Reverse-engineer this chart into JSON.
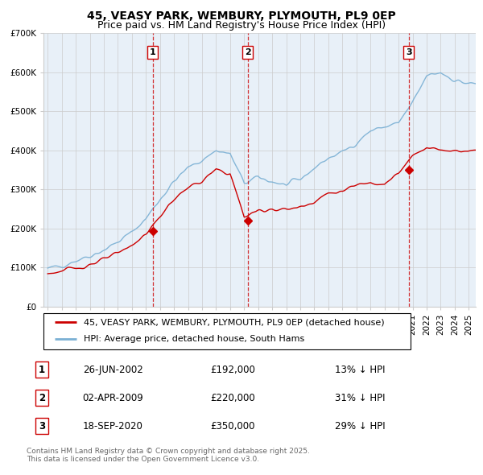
{
  "title": "45, VEASY PARK, WEMBURY, PLYMOUTH, PL9 0EP",
  "subtitle": "Price paid vs. HM Land Registry's House Price Index (HPI)",
  "ylim": [
    0,
    700000
  ],
  "yticks": [
    0,
    100000,
    200000,
    300000,
    400000,
    500000,
    600000,
    700000
  ],
  "ytick_labels": [
    "£0",
    "£100K",
    "£200K",
    "£300K",
    "£400K",
    "£500K",
    "£600K",
    "£700K"
  ],
  "xlim_start": 1994.7,
  "xlim_end": 2025.5,
  "sale_dates": [
    2002.49,
    2009.25,
    2020.72
  ],
  "sale_prices": [
    192000,
    220000,
    350000
  ],
  "sale_labels": [
    "1",
    "2",
    "3"
  ],
  "sale_date_strs": [
    "26-JUN-2002",
    "02-APR-2009",
    "18-SEP-2020"
  ],
  "sale_price_strs": [
    "£192,000",
    "£220,000",
    "£350,000"
  ],
  "sale_hpi_strs": [
    "13% ↓ HPI",
    "31% ↓ HPI",
    "29% ↓ HPI"
  ],
  "legend_property": "45, VEASY PARK, WEMBURY, PLYMOUTH, PL9 0EP (detached house)",
  "legend_hpi": "HPI: Average price, detached house, South Hams",
  "red_color": "#cc0000",
  "blue_color": "#7ab0d4",
  "bg_color_light": "#e8f0f8",
  "bg_color_dark": "#d0dff0",
  "grid_color": "#cccccc",
  "copyright_text": "Contains HM Land Registry data © Crown copyright and database right 2025.\nThis data is licensed under the Open Government Licence v3.0.",
  "title_fontsize": 10,
  "subtitle_fontsize": 9,
  "tick_fontsize": 7.5,
  "legend_fontsize": 8,
  "table_fontsize": 8.5
}
